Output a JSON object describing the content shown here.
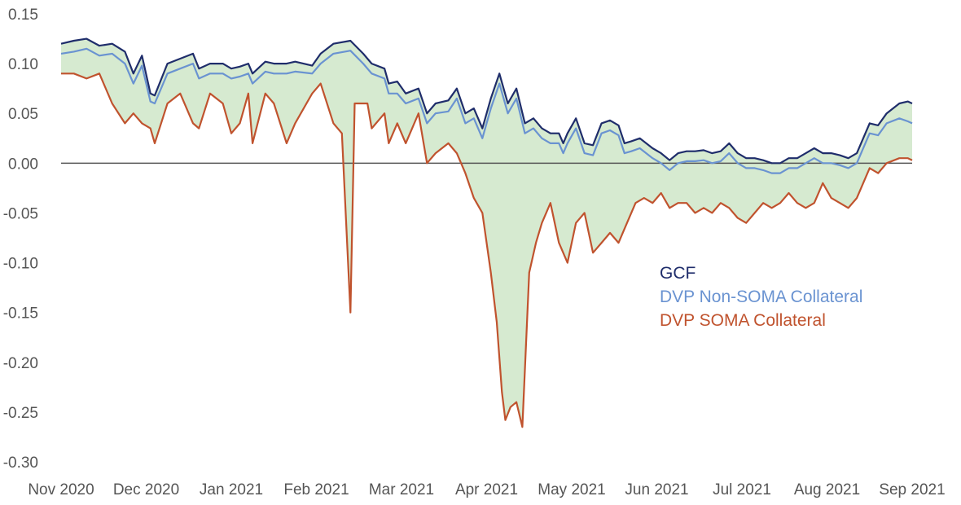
{
  "chart_data": {
    "type": "line",
    "title": "",
    "xlabel": "",
    "ylabel": "",
    "ylim": [
      -0.3,
      0.15
    ],
    "y_ticks": [
      "0.15",
      "0.10",
      "0.05",
      "0.00",
      "-0.05",
      "-0.10",
      "-0.15",
      "-0.20",
      "-0.25",
      "-0.30"
    ],
    "x_ticks": [
      "Nov 2020",
      "Dec 2020",
      "Jan 2021",
      "Feb 2021",
      "Mar 2021",
      "Apr 2021",
      "May 2021",
      "Jun 2021",
      "Jul 2021",
      "Aug 2021",
      "Sep 2021"
    ],
    "x_unit": "months since Nov 2020",
    "xlim": [
      0,
      10
    ],
    "shaded_band": "range between highest and lowest series",
    "band_color": "#cfe6c8",
    "zero_line": true,
    "legend_position": "center-right",
    "series": [
      {
        "name": "GCF",
        "color": "#1f2d6b",
        "points": [
          [
            0,
            0.12
          ],
          [
            0.15,
            0.123
          ],
          [
            0.3,
            0.125
          ],
          [
            0.45,
            0.118
          ],
          [
            0.6,
            0.12
          ],
          [
            0.75,
            0.112
          ],
          [
            0.85,
            0.09
          ],
          [
            0.95,
            0.108
          ],
          [
            1.05,
            0.07
          ],
          [
            1.1,
            0.068
          ],
          [
            1.25,
            0.1
          ],
          [
            1.4,
            0.105
          ],
          [
            1.55,
            0.11
          ],
          [
            1.62,
            0.095
          ],
          [
            1.75,
            0.1
          ],
          [
            1.9,
            0.1
          ],
          [
            2.0,
            0.095
          ],
          [
            2.1,
            0.097
          ],
          [
            2.2,
            0.1
          ],
          [
            2.25,
            0.09
          ],
          [
            2.4,
            0.102
          ],
          [
            2.5,
            0.1
          ],
          [
            2.65,
            0.1
          ],
          [
            2.75,
            0.102
          ],
          [
            2.95,
            0.098
          ],
          [
            3.05,
            0.11
          ],
          [
            3.2,
            0.12
          ],
          [
            3.4,
            0.123
          ],
          [
            3.55,
            0.11
          ],
          [
            3.65,
            0.1
          ],
          [
            3.8,
            0.095
          ],
          [
            3.85,
            0.08
          ],
          [
            3.95,
            0.082
          ],
          [
            4.05,
            0.07
          ],
          [
            4.2,
            0.075
          ],
          [
            4.3,
            0.05
          ],
          [
            4.4,
            0.06
          ],
          [
            4.55,
            0.063
          ],
          [
            4.65,
            0.075
          ],
          [
            4.75,
            0.05
          ],
          [
            4.85,
            0.055
          ],
          [
            4.95,
            0.035
          ],
          [
            5.05,
            0.065
          ],
          [
            5.15,
            0.09
          ],
          [
            5.25,
            0.06
          ],
          [
            5.35,
            0.075
          ],
          [
            5.45,
            0.04
          ],
          [
            5.55,
            0.045
          ],
          [
            5.65,
            0.035
          ],
          [
            5.75,
            0.03
          ],
          [
            5.85,
            0.03
          ],
          [
            5.9,
            0.02
          ],
          [
            5.95,
            0.03
          ],
          [
            6.05,
            0.045
          ],
          [
            6.15,
            0.02
          ],
          [
            6.25,
            0.018
          ],
          [
            6.35,
            0.04
          ],
          [
            6.45,
            0.043
          ],
          [
            6.55,
            0.038
          ],
          [
            6.62,
            0.02
          ],
          [
            6.7,
            0.022
          ],
          [
            6.8,
            0.025
          ],
          [
            6.95,
            0.015
          ],
          [
            7.05,
            0.01
          ],
          [
            7.15,
            0.003
          ],
          [
            7.25,
            0.01
          ],
          [
            7.35,
            0.012
          ],
          [
            7.45,
            0.012
          ],
          [
            7.55,
            0.013
          ],
          [
            7.65,
            0.01
          ],
          [
            7.75,
            0.012
          ],
          [
            7.85,
            0.02
          ],
          [
            7.95,
            0.01
          ],
          [
            8.05,
            0.005
          ],
          [
            8.15,
            0.005
          ],
          [
            8.25,
            0.003
          ],
          [
            8.35,
            0.0
          ],
          [
            8.45,
            0.0
          ],
          [
            8.55,
            0.005
          ],
          [
            8.65,
            0.005
          ],
          [
            8.75,
            0.01
          ],
          [
            8.85,
            0.015
          ],
          [
            8.95,
            0.01
          ],
          [
            9.05,
            0.01
          ],
          [
            9.15,
            0.008
          ],
          [
            9.25,
            0.005
          ],
          [
            9.35,
            0.01
          ],
          [
            9.5,
            0.04
          ],
          [
            9.6,
            0.038
          ],
          [
            9.7,
            0.05
          ],
          [
            9.85,
            0.06
          ],
          [
            9.95,
            0.062
          ],
          [
            10.0,
            0.06
          ]
        ]
      },
      {
        "name": "DVP Non-SOMA Collateral",
        "color": "#6a93d1",
        "points": [
          [
            0,
            0.11
          ],
          [
            0.15,
            0.112
          ],
          [
            0.3,
            0.115
          ],
          [
            0.45,
            0.108
          ],
          [
            0.6,
            0.11
          ],
          [
            0.75,
            0.1
          ],
          [
            0.85,
            0.08
          ],
          [
            0.95,
            0.098
          ],
          [
            1.05,
            0.062
          ],
          [
            1.1,
            0.06
          ],
          [
            1.25,
            0.09
          ],
          [
            1.4,
            0.095
          ],
          [
            1.55,
            0.1
          ],
          [
            1.62,
            0.085
          ],
          [
            1.75,
            0.09
          ],
          [
            1.9,
            0.09
          ],
          [
            2.0,
            0.085
          ],
          [
            2.1,
            0.087
          ],
          [
            2.2,
            0.09
          ],
          [
            2.25,
            0.08
          ],
          [
            2.4,
            0.092
          ],
          [
            2.5,
            0.09
          ],
          [
            2.65,
            0.09
          ],
          [
            2.75,
            0.092
          ],
          [
            2.95,
            0.09
          ],
          [
            3.05,
            0.1
          ],
          [
            3.2,
            0.11
          ],
          [
            3.4,
            0.113
          ],
          [
            3.55,
            0.1
          ],
          [
            3.65,
            0.09
          ],
          [
            3.8,
            0.085
          ],
          [
            3.85,
            0.07
          ],
          [
            3.95,
            0.07
          ],
          [
            4.05,
            0.06
          ],
          [
            4.2,
            0.065
          ],
          [
            4.3,
            0.04
          ],
          [
            4.4,
            0.05
          ],
          [
            4.55,
            0.052
          ],
          [
            4.65,
            0.065
          ],
          [
            4.75,
            0.04
          ],
          [
            4.85,
            0.045
          ],
          [
            4.95,
            0.025
          ],
          [
            5.05,
            0.055
          ],
          [
            5.15,
            0.08
          ],
          [
            5.25,
            0.05
          ],
          [
            5.35,
            0.065
          ],
          [
            5.45,
            0.03
          ],
          [
            5.55,
            0.035
          ],
          [
            5.65,
            0.025
          ],
          [
            5.75,
            0.02
          ],
          [
            5.85,
            0.02
          ],
          [
            5.9,
            0.01
          ],
          [
            5.95,
            0.02
          ],
          [
            6.05,
            0.035
          ],
          [
            6.15,
            0.01
          ],
          [
            6.25,
            0.008
          ],
          [
            6.35,
            0.03
          ],
          [
            6.45,
            0.033
          ],
          [
            6.55,
            0.028
          ],
          [
            6.62,
            0.01
          ],
          [
            6.7,
            0.012
          ],
          [
            6.8,
            0.015
          ],
          [
            6.95,
            0.005
          ],
          [
            7.05,
            0.0
          ],
          [
            7.15,
            -0.007
          ],
          [
            7.25,
            0.0
          ],
          [
            7.35,
            0.002
          ],
          [
            7.45,
            0.002
          ],
          [
            7.55,
            0.003
          ],
          [
            7.65,
            0.0
          ],
          [
            7.75,
            0.002
          ],
          [
            7.85,
            0.01
          ],
          [
            7.95,
            0.0
          ],
          [
            8.05,
            -0.005
          ],
          [
            8.15,
            -0.005
          ],
          [
            8.25,
            -0.007
          ],
          [
            8.35,
            -0.01
          ],
          [
            8.45,
            -0.01
          ],
          [
            8.55,
            -0.005
          ],
          [
            8.65,
            -0.005
          ],
          [
            8.75,
            0.0
          ],
          [
            8.85,
            0.005
          ],
          [
            8.95,
            0.0
          ],
          [
            9.05,
            0.0
          ],
          [
            9.15,
            -0.002
          ],
          [
            9.25,
            -0.005
          ],
          [
            9.35,
            0.0
          ],
          [
            9.5,
            0.03
          ],
          [
            9.6,
            0.028
          ],
          [
            9.7,
            0.04
          ],
          [
            9.85,
            0.045
          ],
          [
            9.95,
            0.042
          ],
          [
            10.0,
            0.04
          ]
        ]
      },
      {
        "name": "DVP SOMA Collateral",
        "color": "#c0532e",
        "points": [
          [
            0,
            0.09
          ],
          [
            0.15,
            0.09
          ],
          [
            0.3,
            0.085
          ],
          [
            0.45,
            0.09
          ],
          [
            0.6,
            0.06
          ],
          [
            0.75,
            0.04
          ],
          [
            0.85,
            0.05
          ],
          [
            0.95,
            0.04
          ],
          [
            1.05,
            0.035
          ],
          [
            1.1,
            0.02
          ],
          [
            1.25,
            0.06
          ],
          [
            1.4,
            0.07
          ],
          [
            1.55,
            0.04
          ],
          [
            1.62,
            0.035
          ],
          [
            1.75,
            0.07
          ],
          [
            1.9,
            0.06
          ],
          [
            2.0,
            0.03
          ],
          [
            2.1,
            0.04
          ],
          [
            2.2,
            0.07
          ],
          [
            2.25,
            0.02
          ],
          [
            2.4,
            0.07
          ],
          [
            2.5,
            0.06
          ],
          [
            2.65,
            0.02
          ],
          [
            2.75,
            0.04
          ],
          [
            2.95,
            0.07
          ],
          [
            3.05,
            0.08
          ],
          [
            3.2,
            0.04
          ],
          [
            3.3,
            0.03
          ],
          [
            3.4,
            -0.15
          ],
          [
            3.45,
            0.06
          ],
          [
            3.6,
            0.06
          ],
          [
            3.65,
            0.035
          ],
          [
            3.8,
            0.05
          ],
          [
            3.85,
            0.02
          ],
          [
            3.95,
            0.04
          ],
          [
            4.05,
            0.02
          ],
          [
            4.2,
            0.05
          ],
          [
            4.3,
            0.0
          ],
          [
            4.4,
            0.01
          ],
          [
            4.55,
            0.02
          ],
          [
            4.65,
            0.01
          ],
          [
            4.75,
            -0.01
          ],
          [
            4.85,
            -0.035
          ],
          [
            4.95,
            -0.05
          ],
          [
            5.05,
            -0.11
          ],
          [
            5.12,
            -0.16
          ],
          [
            5.18,
            -0.23
          ],
          [
            5.22,
            -0.258
          ],
          [
            5.28,
            -0.245
          ],
          [
            5.35,
            -0.24
          ],
          [
            5.42,
            -0.265
          ],
          [
            5.5,
            -0.11
          ],
          [
            5.58,
            -0.08
          ],
          [
            5.65,
            -0.06
          ],
          [
            5.75,
            -0.04
          ],
          [
            5.85,
            -0.08
          ],
          [
            5.95,
            -0.1
          ],
          [
            6.05,
            -0.06
          ],
          [
            6.15,
            -0.05
          ],
          [
            6.25,
            -0.09
          ],
          [
            6.35,
            -0.08
          ],
          [
            6.45,
            -0.07
          ],
          [
            6.55,
            -0.08
          ],
          [
            6.65,
            -0.06
          ],
          [
            6.75,
            -0.04
          ],
          [
            6.85,
            -0.035
          ],
          [
            6.95,
            -0.04
          ],
          [
            7.05,
            -0.03
          ],
          [
            7.15,
            -0.045
          ],
          [
            7.25,
            -0.04
          ],
          [
            7.35,
            -0.04
          ],
          [
            7.45,
            -0.05
          ],
          [
            7.55,
            -0.045
          ],
          [
            7.65,
            -0.05
          ],
          [
            7.75,
            -0.04
          ],
          [
            7.85,
            -0.045
          ],
          [
            7.95,
            -0.055
          ],
          [
            8.05,
            -0.06
          ],
          [
            8.15,
            -0.05
          ],
          [
            8.25,
            -0.04
          ],
          [
            8.35,
            -0.045
          ],
          [
            8.45,
            -0.04
          ],
          [
            8.55,
            -0.03
          ],
          [
            8.65,
            -0.04
          ],
          [
            8.75,
            -0.045
          ],
          [
            8.85,
            -0.04
          ],
          [
            8.95,
            -0.02
          ],
          [
            9.05,
            -0.035
          ],
          [
            9.15,
            -0.04
          ],
          [
            9.25,
            -0.045
          ],
          [
            9.35,
            -0.035
          ],
          [
            9.5,
            -0.005
          ],
          [
            9.6,
            -0.01
          ],
          [
            9.7,
            0.0
          ],
          [
            9.85,
            0.005
          ],
          [
            9.95,
            0.005
          ],
          [
            10.0,
            0.003
          ]
        ]
      }
    ]
  }
}
